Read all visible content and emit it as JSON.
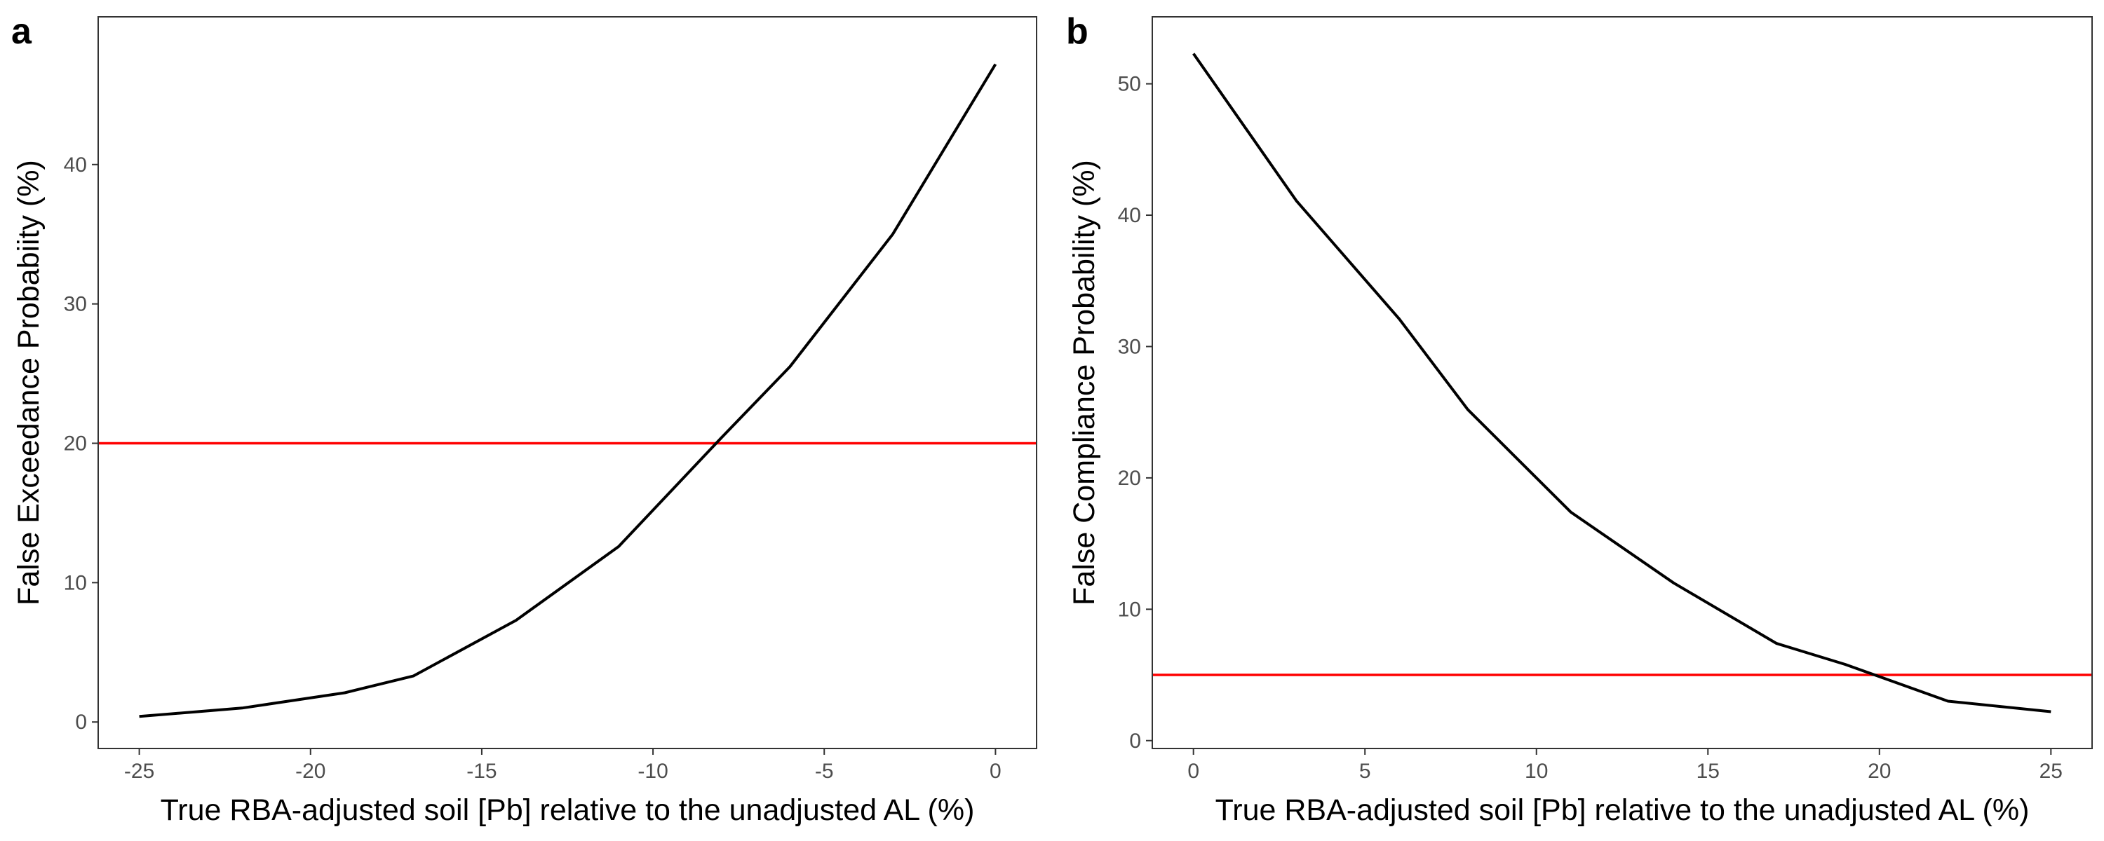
{
  "chart_data": [
    {
      "panel": "a",
      "type": "line",
      "xlabel": "True RBA-adjusted soil [Pb] relative to the unadjusted AL (%)",
      "ylabel": "False Exceedance Probabiity (%)",
      "xlim": [
        -26.2,
        1.2
      ],
      "ylim": [
        -1.9,
        50.6
      ],
      "xticks": [
        -25,
        -20,
        -15,
        -10,
        -5,
        0
      ],
      "yticks": [
        0,
        10,
        20,
        30,
        40
      ],
      "xtick_labels": [
        "-25",
        "-20",
        "-15",
        "-10",
        "-5",
        "0"
      ],
      "ytick_labels": [
        "0",
        "10",
        "20",
        "30",
        "40"
      ],
      "series": [
        {
          "x": [
            -25,
            -22,
            -19,
            -17,
            -14,
            -11,
            -8,
            -6,
            -3,
            0
          ],
          "y": [
            0.4,
            1.0,
            2.1,
            3.3,
            7.3,
            12.6,
            20.4,
            25.5,
            35.0,
            47.2
          ],
          "color": "#000000"
        }
      ],
      "reference_line": {
        "y": 20,
        "color": "#ff0000"
      },
      "grid": false
    },
    {
      "panel": "b",
      "type": "line",
      "xlabel": "True RBA-adjusted soil [Pb] relative to the unadjusted AL (%)",
      "ylabel": "False Compliance Probability (%)",
      "xlim": [
        -1.2,
        26.2
      ],
      "ylim": [
        -0.6,
        55.1
      ],
      "xticks": [
        0,
        5,
        10,
        15,
        20,
        25
      ],
      "yticks": [
        0,
        10,
        20,
        30,
        40,
        50
      ],
      "xtick_labels": [
        "0",
        "5",
        "10",
        "15",
        "20",
        "25"
      ],
      "ytick_labels": [
        "0",
        "10",
        "20",
        "30",
        "40",
        "50"
      ],
      "series": [
        {
          "x": [
            0,
            3,
            6,
            8,
            11,
            14,
            17,
            19,
            22,
            25
          ],
          "y": [
            52.3,
            41.1,
            32.1,
            25.2,
            17.4,
            12.0,
            7.4,
            5.8,
            3.0,
            2.2
          ],
          "color": "#000000"
        }
      ],
      "reference_line": {
        "y": 5,
        "color": "#ff0000"
      },
      "grid": false
    }
  ]
}
